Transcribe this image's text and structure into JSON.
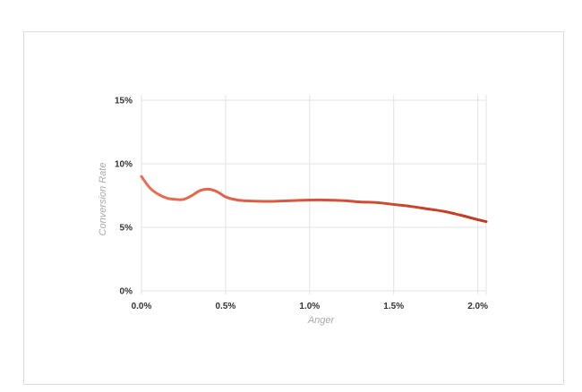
{
  "chart_data": {
    "type": "line",
    "xlabel": "Anger",
    "ylabel": "Conversion Rate",
    "xlim": [
      0,
      2.05
    ],
    "ylim": [
      0,
      15
    ],
    "x_ticks": [
      "0.0%",
      "0.5%",
      "1.0%",
      "1.5%",
      "2.0%"
    ],
    "x_tick_values": [
      0,
      0.5,
      1.0,
      1.5,
      2.0
    ],
    "y_ticks": [
      "0%",
      "5%",
      "10%",
      "15%"
    ],
    "y_tick_values": [
      0,
      5,
      10,
      15
    ],
    "grid": true,
    "series": [
      {
        "x": [
          0.0,
          0.05,
          0.1,
          0.15,
          0.2,
          0.25,
          0.3,
          0.35,
          0.4,
          0.45,
          0.5,
          0.55,
          0.6,
          0.7,
          0.8,
          0.9,
          1.0,
          1.1,
          1.2,
          1.3,
          1.4,
          1.5,
          1.6,
          1.7,
          1.8,
          1.9,
          2.0,
          2.05
        ],
        "y": [
          9.0,
          8.1,
          7.6,
          7.3,
          7.2,
          7.2,
          7.5,
          7.9,
          8.0,
          7.8,
          7.4,
          7.2,
          7.1,
          7.05,
          7.05,
          7.1,
          7.15,
          7.15,
          7.1,
          7.0,
          6.95,
          6.8,
          6.65,
          6.45,
          6.25,
          5.95,
          5.6,
          5.45
        ]
      }
    ],
    "colors": {
      "line_start": "#e87058",
      "line_end": "#c03a1e"
    }
  }
}
